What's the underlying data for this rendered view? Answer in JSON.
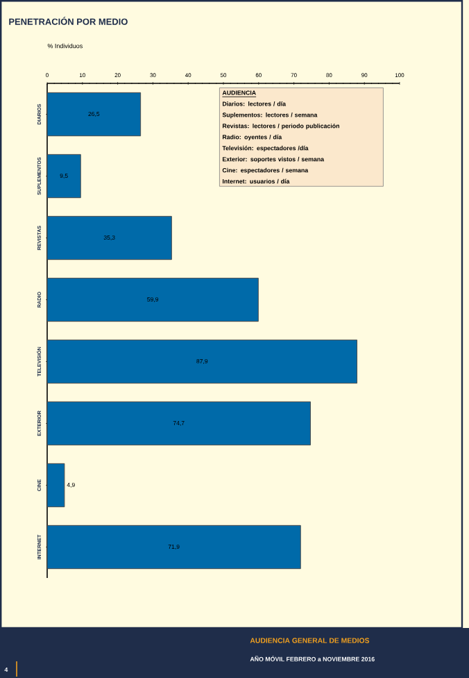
{
  "chart_data": {
    "type": "bar",
    "orientation": "horizontal",
    "title": "PENETRACIÓN POR MEDIO",
    "xlabel": "% Individuos",
    "categories": [
      "DIARIOS",
      "SUPLEMENTOS",
      "REVISTAS",
      "RADIO",
      "TELEVISIÓN",
      "EXTERIOR",
      "CINE",
      "INTERNET"
    ],
    "values": [
      26.5,
      9.5,
      35.3,
      59.9,
      87.9,
      74.7,
      4.9,
      71.9
    ],
    "value_labels": [
      "26,5",
      "9,5",
      "35,3",
      "59,9",
      "87,9",
      "74,7",
      "4,9",
      "71,9"
    ],
    "color": "#006aa9",
    "xlim": [
      0,
      100
    ],
    "xticks": [
      0,
      10,
      20,
      30,
      40,
      50,
      60,
      70,
      80,
      90,
      100
    ],
    "grid": false,
    "annotations": [
      "AUDIENCIA",
      "Diarios: lectores / día",
      "Suplementos: lectores / semana",
      "Revistas: lectores / periodo publicación",
      "Radio: oyentes / día",
      "Televisión: espectadores /día",
      "Exterior: soportes vistos / semana",
      "Cine: espectadores / semana",
      "Internet: usuarios / día",
      "AUDIENCIA GENERAL DE MEDIOS",
      "AÑO MÓVIL FEBRERO a NOVIEMBRE 2016",
      "4"
    ]
  }
}
